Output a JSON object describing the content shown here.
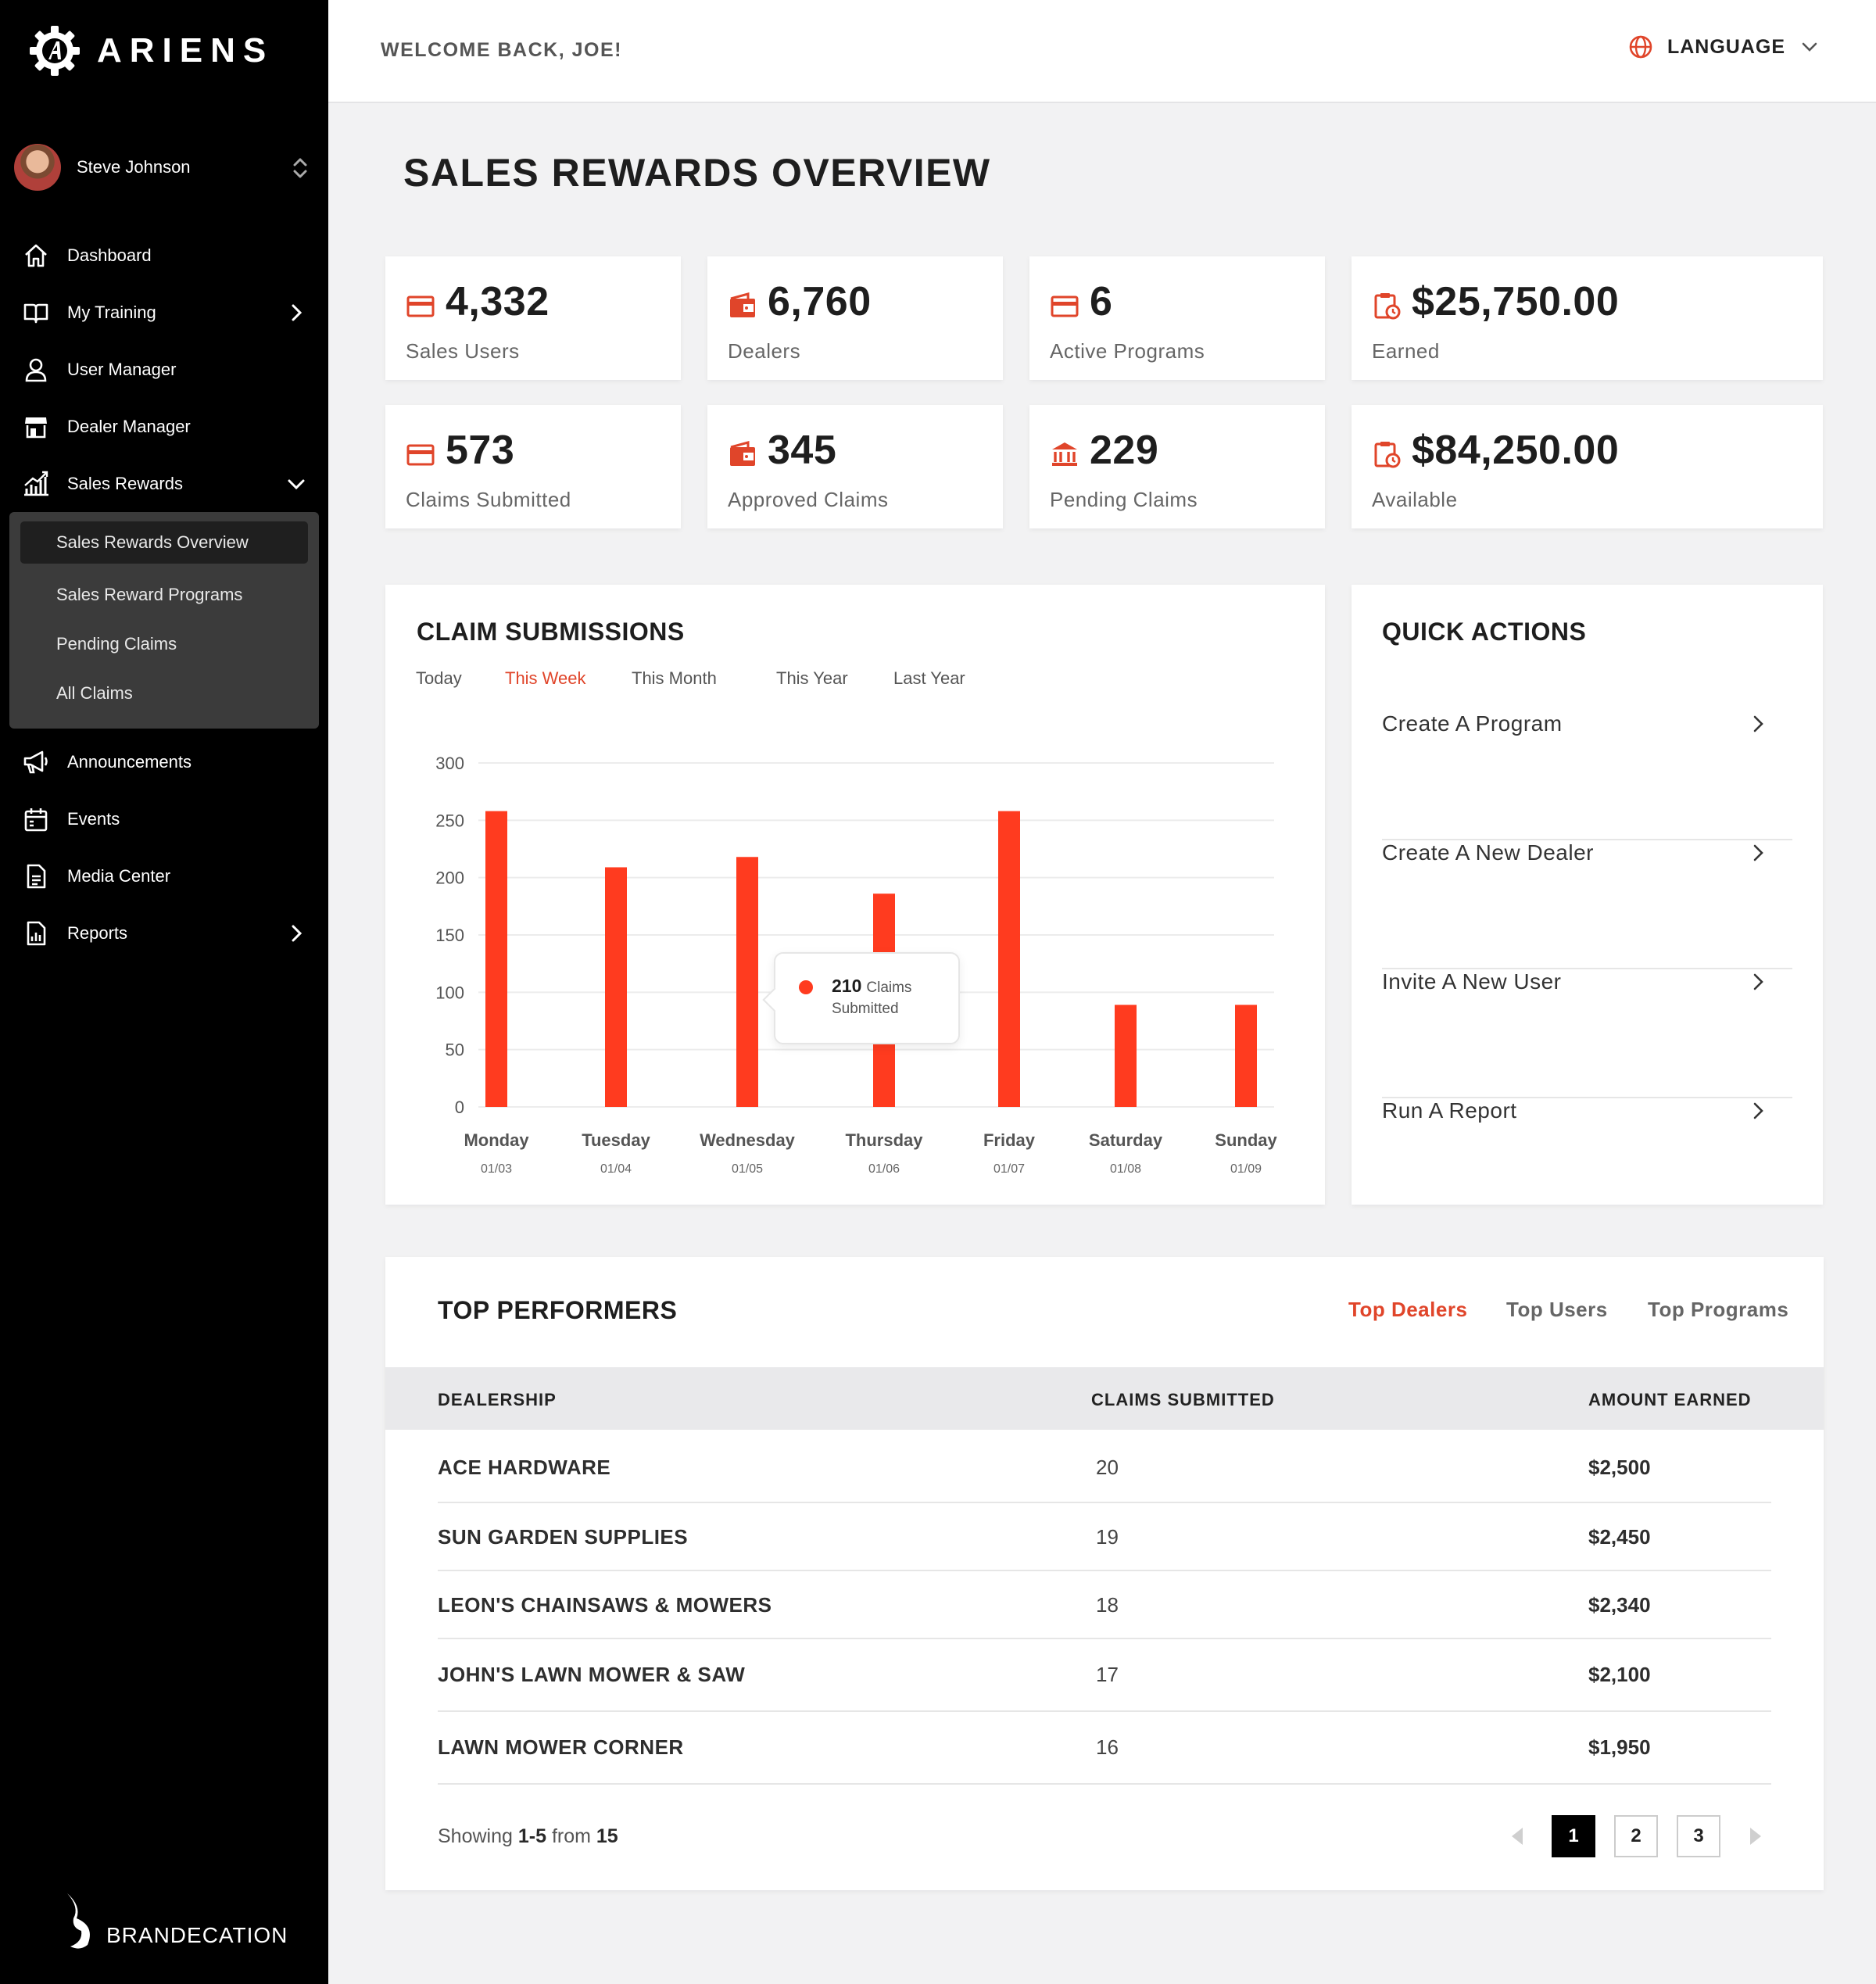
{
  "brand": {
    "name": "ARIENS",
    "footer": "BRANDECATION"
  },
  "user": {
    "name": "Steve Johnson"
  },
  "nav": {
    "items": [
      {
        "label": "Dashboard",
        "icon": "home-icon"
      },
      {
        "label": "My Training",
        "icon": "book-icon"
      },
      {
        "label": "User Manager",
        "icon": "user-icon"
      },
      {
        "label": "Dealer Manager",
        "icon": "store-icon"
      },
      {
        "label": "Sales Rewards",
        "icon": "chart-growth-icon"
      }
    ],
    "sub_items": [
      "Sales Rewards Overview",
      "Sales Reward Programs",
      "Pending Claims",
      "All Claims"
    ],
    "items_after": [
      {
        "label": "Announcements",
        "icon": "megaphone-icon"
      },
      {
        "label": "Events",
        "icon": "calendar-icon"
      },
      {
        "label": "Media Center",
        "icon": "document-icon"
      },
      {
        "label": "Reports",
        "icon": "report-icon"
      }
    ]
  },
  "header": {
    "welcome": "WELCOME BACK, JOE!",
    "language": "LANGUAGE"
  },
  "page": {
    "title": "SALES REWARDS OVERVIEW"
  },
  "stats": [
    {
      "value": "4,332",
      "label": "Sales Users",
      "icon": "card-icon"
    },
    {
      "value": "6,760",
      "label": "Dealers",
      "icon": "wallet-icon"
    },
    {
      "value": "6",
      "label": "Active Programs",
      "icon": "card-icon"
    },
    {
      "value": "$25,750.00",
      "label": "Earned",
      "icon": "clipboard-clock-icon"
    },
    {
      "value": "573",
      "label": "Claims Submitted",
      "icon": "card-icon"
    },
    {
      "value": "345",
      "label": "Approved Claims",
      "icon": "wallet-icon"
    },
    {
      "value": "229",
      "label": "Pending Claims",
      "icon": "bank-icon"
    },
    {
      "value": "$84,250.00",
      "label": "Available",
      "icon": "clipboard-clock-icon"
    }
  ],
  "claims": {
    "title": "CLAIM SUBMISSIONS",
    "ranges": [
      "Today",
      "This Week",
      "This Month",
      "This Year",
      "Last Year"
    ],
    "active_range": "This Week",
    "tooltip": {
      "value": "210",
      "unit1": "Claims",
      "unit2": "Submitted"
    }
  },
  "chart_data": {
    "type": "bar",
    "categories": [
      "Monday",
      "Tuesday",
      "Wednesday",
      "Thursday",
      "Friday",
      "Saturday",
      "Sunday"
    ],
    "dates": [
      "01/03",
      "01/04",
      "01/05",
      "01/06",
      "01/07",
      "01/08",
      "01/09"
    ],
    "values": [
      258,
      209,
      218,
      186,
      258,
      89,
      89
    ],
    "yticks": [
      0,
      50,
      100,
      150,
      200,
      250,
      300
    ],
    "ylim": [
      0,
      300
    ],
    "grid": true,
    "bar_color": "#ff3b1f"
  },
  "quick_actions": {
    "title": "QUICK ACTIONS",
    "items": [
      "Create A Program",
      "Create A New Dealer",
      "Invite A New User",
      "Run A Report"
    ]
  },
  "performers": {
    "title": "TOP PERFORMERS",
    "tabs": [
      "Top Dealers",
      "Top Users",
      "Top Programs"
    ],
    "active_tab": "Top Dealers",
    "columns": [
      "DEALERSHIP",
      "CLAIMS SUBMITTED",
      "AMOUNT EARNED"
    ],
    "rows": [
      {
        "dealer": "ACE HARDWARE",
        "claims": "20",
        "amount": "$2,500"
      },
      {
        "dealer": "SUN GARDEN SUPPLIES",
        "claims": "19",
        "amount": "$2,450"
      },
      {
        "dealer": "LEON'S CHAINSAWS & MOWERS",
        "claims": "18",
        "amount": "$2,340"
      },
      {
        "dealer": "JOHN'S LAWN MOWER & SAW",
        "claims": "17",
        "amount": "$2,100"
      },
      {
        "dealer": "LAWN MOWER CORNER",
        "claims": "16",
        "amount": "$1,950"
      }
    ],
    "showing": {
      "prefix": "Showing",
      "range": "1-5",
      "from": "from",
      "total": "15"
    },
    "pages": [
      "1",
      "2",
      "3"
    ],
    "current_page": "1"
  },
  "colors": {
    "accent": "#e0452a",
    "bar": "#ff3b1f",
    "sidebar": "#000000"
  }
}
